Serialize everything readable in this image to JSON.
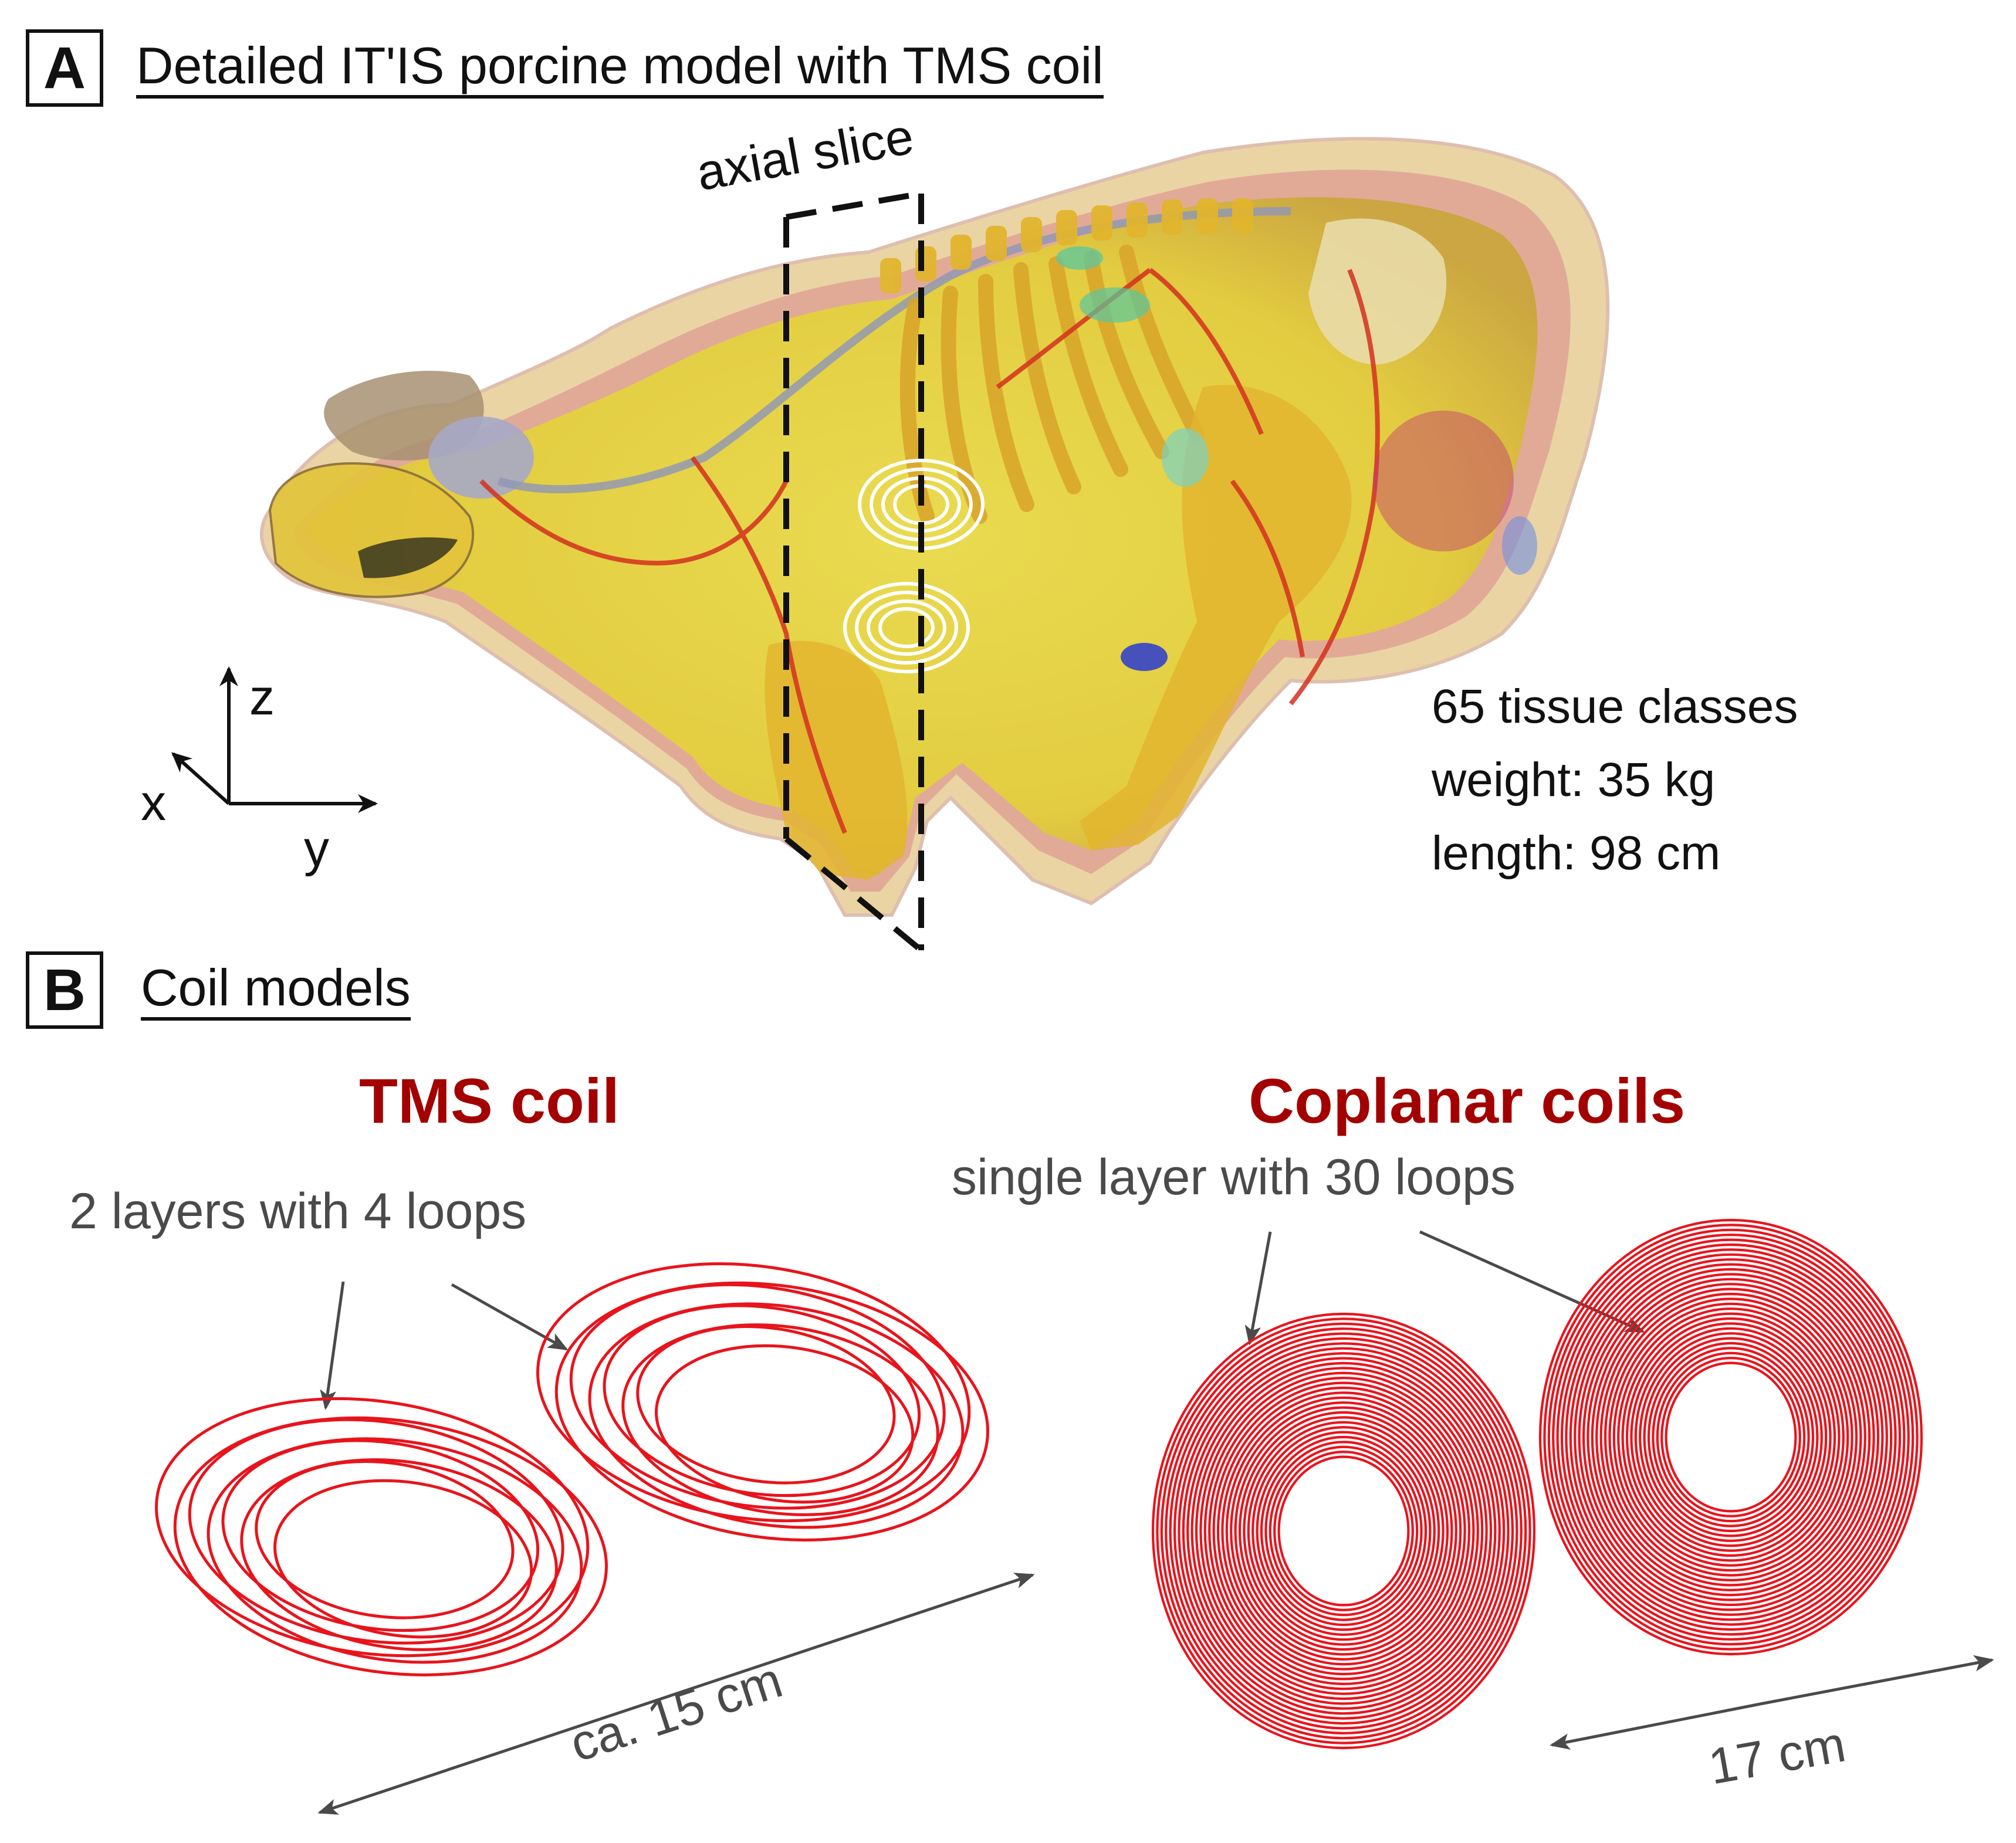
{
  "panel_a": {
    "letter": "A",
    "title": "Detailed IT'IS porcine model with TMS coil",
    "slice_label": "axial slice",
    "info": [
      "65 tissue classes",
      "weight: 35 kg",
      "length: 98 cm"
    ],
    "axes": {
      "z": "z",
      "x": "x",
      "y": "y"
    }
  },
  "panel_b": {
    "letter": "B",
    "title": "Coil models",
    "tms": {
      "title": "TMS coil",
      "subtitle": "2 layers with 4 loops",
      "dimension": "ca. 15 cm"
    },
    "coplanar": {
      "title": "Coplanar coils",
      "subtitle": "single layer with 30 loops",
      "dimension": "17 cm"
    }
  },
  "colors": {
    "coil_red": "#e8141c",
    "title_red": "#a30000",
    "label_gray": "#4a4a4a",
    "tissue_yellow": "#e9d735",
    "bone": "#e3b32a",
    "skin_pink": "#d2868a"
  }
}
